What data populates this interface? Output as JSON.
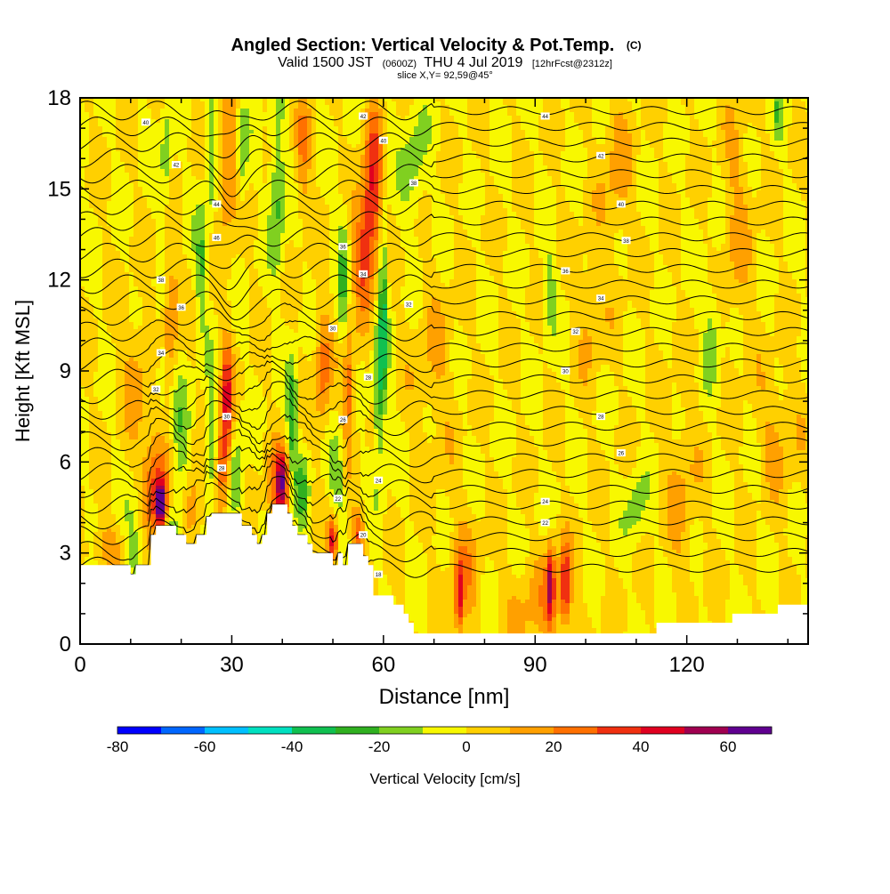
{
  "chart_data": {
    "type": "heatmap",
    "title": {
      "main": "Angled Section: Vertical Velocity & Pot.Temp.",
      "main_suffix": "(C)",
      "valid_a": "Valid 1500 JST",
      "valid_b": "(0600Z)",
      "valid_c": "THU 4 Jul 2019",
      "valid_d": "[12hrFcst@2312z]",
      "slice": "slice X,Y= 92,59@45°"
    },
    "xlabel": "Distance [nm]",
    "ylabel": "Height [Kft MSL]",
    "xlim": [
      0,
      144
    ],
    "ylim": [
      0,
      18
    ],
    "x_ticks": [
      0,
      30,
      60,
      90,
      120
    ],
    "y_ticks": [
      0,
      3,
      6,
      9,
      12,
      15,
      18
    ],
    "colorbar": {
      "label": "Vertical Velocity [cm/s]",
      "tick_values": [
        -80,
        -60,
        -40,
        -20,
        0,
        20,
        40,
        60
      ],
      "bounds": [
        -80,
        70
      ],
      "step": 10,
      "colors": [
        "#0000ff",
        "#0066ff",
        "#00c0ff",
        "#00e0c0",
        "#10c050",
        "#30b020",
        "#80d020",
        "#f8f800",
        "#ffd000",
        "#ffa000",
        "#ff7000",
        "#f03010",
        "#e00020",
        "#a00050",
        "#600090"
      ]
    },
    "background_value": 0,
    "features": [
      {
        "x": 16,
        "y": 4.6,
        "value": 65,
        "wx": 1.0,
        "wy": 0.7
      },
      {
        "x": 15,
        "y": 5.4,
        "value": 35,
        "wx": 2.5,
        "wy": 1.8
      },
      {
        "x": 5,
        "y": 3.2,
        "value": 15,
        "wx": 3.5,
        "wy": 0.8
      },
      {
        "x": 11,
        "y": 3.3,
        "value": -15,
        "wx": 2.0,
        "wy": 1.5
      },
      {
        "x": 18,
        "y": 3.7,
        "value": -15,
        "wx": 1.5,
        "wy": 1.0
      },
      {
        "x": 20,
        "y": 6.0,
        "value": -20,
        "wx": 2.0,
        "wy": 2.5
      },
      {
        "x": 22,
        "y": 4.5,
        "value": 25,
        "wx": 2.0,
        "wy": 1.5
      },
      {
        "x": 29,
        "y": 8.0,
        "value": 40,
        "wx": 1.2,
        "wy": 2.0
      },
      {
        "x": 28,
        "y": 5.8,
        "value": 30,
        "wx": 1.5,
        "wy": 1.5
      },
      {
        "x": 26,
        "y": 6.8,
        "value": -25,
        "wx": 1.2,
        "wy": 2.0
      },
      {
        "x": 31,
        "y": 5.5,
        "value": -20,
        "wx": 1.5,
        "wy": 1.5
      },
      {
        "x": 40,
        "y": 5.4,
        "value": 42,
        "wx": 1.2,
        "wy": 1.0
      },
      {
        "x": 39,
        "y": 4.8,
        "value": 25,
        "wx": 2.0,
        "wy": 1.5
      },
      {
        "x": 42,
        "y": 7.5,
        "value": -30,
        "wx": 1.0,
        "wy": 1.8
      },
      {
        "x": 44,
        "y": 5.0,
        "value": -20,
        "wx": 1.5,
        "wy": 1.3
      },
      {
        "x": 50,
        "y": 3.4,
        "value": 45,
        "wx": 1.0,
        "wy": 0.8
      },
      {
        "x": 51,
        "y": 5.5,
        "value": -18,
        "wx": 1.5,
        "wy": 1.5
      },
      {
        "x": 55,
        "y": 3.6,
        "value": 30,
        "wx": 1.2,
        "wy": 0.8
      },
      {
        "x": 53,
        "y": 8.5,
        "value": 30,
        "wx": 1.5,
        "wy": 2.0
      },
      {
        "x": 48,
        "y": 9.0,
        "value": 25,
        "wx": 1.5,
        "wy": 2.0
      },
      {
        "x": 58,
        "y": 15.0,
        "value": 40,
        "wx": 1.8,
        "wy": 2.5
      },
      {
        "x": 56,
        "y": 13.0,
        "value": 30,
        "wx": 1.8,
        "wy": 2.0
      },
      {
        "x": 60,
        "y": 11.0,
        "value": -30,
        "wx": 0.9,
        "wy": 3.5
      },
      {
        "x": 59,
        "y": 8.0,
        "value": -25,
        "wx": 1.0,
        "wy": 2.5
      },
      {
        "x": 52,
        "y": 11.5,
        "value": -20,
        "wx": 1.0,
        "wy": 3.0
      },
      {
        "x": 66,
        "y": 15.8,
        "value": -15,
        "wx": 2.5,
        "wy": 2.0
      },
      {
        "x": 39,
        "y": 15.0,
        "value": -25,
        "wx": 1.5,
        "wy": 2.5
      },
      {
        "x": 44,
        "y": 16.0,
        "value": 20,
        "wx": 1.5,
        "wy": 2.0
      },
      {
        "x": 29,
        "y": 15.5,
        "value": 25,
        "wx": 2.5,
        "wy": 2.0
      },
      {
        "x": 26,
        "y": 16.0,
        "value": -25,
        "wx": 1.2,
        "wy": 2.0
      },
      {
        "x": 32,
        "y": 16.0,
        "value": -20,
        "wx": 1.2,
        "wy": 2.0
      },
      {
        "x": 17,
        "y": 16.0,
        "value": -20,
        "wx": 1.0,
        "wy": 1.5
      },
      {
        "x": 24,
        "y": 12.5,
        "value": -20,
        "wx": 1.2,
        "wy": 2.0
      },
      {
        "x": 18,
        "y": 11.0,
        "value": 22,
        "wx": 1.5,
        "wy": 2.0
      },
      {
        "x": 16,
        "y": 9.0,
        "value": -15,
        "wx": 1.0,
        "wy": 1.5
      },
      {
        "x": 11,
        "y": 9.0,
        "value": 15,
        "wx": 2.5,
        "wy": 2.0
      },
      {
        "x": 75,
        "y": 1.5,
        "value": 35,
        "wx": 0.8,
        "wy": 1.2
      },
      {
        "x": 76,
        "y": 2.5,
        "value": 15,
        "wx": 3.0,
        "wy": 2.0
      },
      {
        "x": 93,
        "y": 2.0,
        "value": 40,
        "wx": 0.8,
        "wy": 1.3
      },
      {
        "x": 96,
        "y": 2.0,
        "value": 35,
        "wx": 0.8,
        "wy": 1.3
      },
      {
        "x": 94,
        "y": 1.5,
        "value": 18,
        "wx": 4.0,
        "wy": 1.5
      },
      {
        "x": 87,
        "y": 1.0,
        "value": 12,
        "wx": 3.0,
        "wy": 1.5
      },
      {
        "x": 93,
        "y": 11.5,
        "value": -15,
        "wx": 1.2,
        "wy": 1.5
      },
      {
        "x": 101,
        "y": 11.0,
        "value": 12,
        "wx": 2.5,
        "wy": 2.0
      },
      {
        "x": 110,
        "y": 4.5,
        "value": -15,
        "wx": 2.0,
        "wy": 1.2
      },
      {
        "x": 125,
        "y": 10.5,
        "value": -15,
        "wx": 1.8,
        "wy": 1.8
      },
      {
        "x": 119,
        "y": 5.0,
        "value": 12,
        "wx": 3.0,
        "wy": 3.0
      },
      {
        "x": 106,
        "y": 15.5,
        "value": 13,
        "wx": 3.0,
        "wy": 3.0
      },
      {
        "x": 130,
        "y": 14.0,
        "value": 12,
        "wx": 3.0,
        "wy": 4.0
      },
      {
        "x": 138,
        "y": 17.5,
        "value": -15,
        "wx": 1.0,
        "wy": 1.0
      },
      {
        "x": 138,
        "y": 7.0,
        "value": 12,
        "wx": 4.0,
        "wy": 2.0
      },
      {
        "x": 70,
        "y": 9.0,
        "value": 10,
        "wx": 4.0,
        "wy": 3.0
      }
    ],
    "terrain": [
      [
        0,
        2.6
      ],
      [
        10,
        2.6
      ],
      [
        10,
        2.3
      ],
      [
        11,
        2.3
      ],
      [
        11,
        2.6
      ],
      [
        14,
        2.6
      ],
      [
        14,
        3.6
      ],
      [
        15,
        3.6
      ],
      [
        15,
        3.9
      ],
      [
        19,
        3.9
      ],
      [
        19,
        3.6
      ],
      [
        21,
        3.6
      ],
      [
        21,
        3.3
      ],
      [
        23,
        3.3
      ],
      [
        23,
        3.6
      ],
      [
        25,
        3.6
      ],
      [
        25,
        4.2
      ],
      [
        26,
        4.2
      ],
      [
        26,
        4.3
      ],
      [
        32,
        4.3
      ],
      [
        32,
        3.9
      ],
      [
        34,
        3.9
      ],
      [
        34,
        3.6
      ],
      [
        35,
        3.6
      ],
      [
        35,
        3.3
      ],
      [
        36,
        3.3
      ],
      [
        36,
        3.6
      ],
      [
        37,
        3.6
      ],
      [
        37,
        4.3
      ],
      [
        38,
        4.3
      ],
      [
        38,
        4.6
      ],
      [
        41,
        4.6
      ],
      [
        41,
        4.3
      ],
      [
        42,
        4.3
      ],
      [
        42,
        3.9
      ],
      [
        43,
        3.9
      ],
      [
        43,
        3.6
      ],
      [
        45,
        3.6
      ],
      [
        45,
        3.3
      ],
      [
        46,
        3.3
      ],
      [
        46,
        3.0
      ],
      [
        50,
        3.0
      ],
      [
        50,
        2.6
      ],
      [
        51,
        2.6
      ],
      [
        51,
        3.0
      ],
      [
        52,
        3.0
      ],
      [
        52,
        2.6
      ],
      [
        53,
        2.6
      ],
      [
        53,
        3.3
      ],
      [
        56,
        3.3
      ],
      [
        56,
        2.9
      ],
      [
        57,
        2.9
      ],
      [
        57,
        2.6
      ],
      [
        58,
        2.6
      ],
      [
        58,
        1.6
      ],
      [
        62,
        1.6
      ],
      [
        62,
        1.3
      ],
      [
        64,
        1.3
      ],
      [
        64,
        1.0
      ],
      [
        65,
        1.0
      ],
      [
        65,
        0.7
      ],
      [
        66,
        0.7
      ],
      [
        66,
        0.35
      ],
      [
        114,
        0.35
      ],
      [
        114,
        0.7
      ],
      [
        129,
        0.7
      ],
      [
        129,
        1.0
      ],
      [
        138,
        1.0
      ],
      [
        138,
        1.3
      ],
      [
        144,
        1.3
      ]
    ],
    "isentropes": {
      "count": 30,
      "base_start": 2.5,
      "spacing": 0.52,
      "contour_labels": [
        {
          "x": 13,
          "y": 17.2,
          "text": "40"
        },
        {
          "x": 19,
          "y": 15.8,
          "text": "42"
        },
        {
          "x": 27,
          "y": 14.5,
          "text": "44"
        },
        {
          "x": 27,
          "y": 13.4,
          "text": "46"
        },
        {
          "x": 16,
          "y": 12.0,
          "text": "38"
        },
        {
          "x": 20,
          "y": 11.1,
          "text": "36"
        },
        {
          "x": 16,
          "y": 9.6,
          "text": "34"
        },
        {
          "x": 15,
          "y": 8.4,
          "text": "32"
        },
        {
          "x": 29,
          "y": 7.5,
          "text": "30"
        },
        {
          "x": 28,
          "y": 5.8,
          "text": "28"
        },
        {
          "x": 56,
          "y": 17.4,
          "text": "42"
        },
        {
          "x": 60,
          "y": 16.6,
          "text": "40"
        },
        {
          "x": 66,
          "y": 15.2,
          "text": "38"
        },
        {
          "x": 52,
          "y": 13.1,
          "text": "36"
        },
        {
          "x": 56,
          "y": 12.2,
          "text": "34"
        },
        {
          "x": 65,
          "y": 11.2,
          "text": "32"
        },
        {
          "x": 50,
          "y": 10.4,
          "text": "30"
        },
        {
          "x": 57,
          "y": 8.8,
          "text": "28"
        },
        {
          "x": 52,
          "y": 7.4,
          "text": "26"
        },
        {
          "x": 59,
          "y": 5.4,
          "text": "24"
        },
        {
          "x": 51,
          "y": 4.8,
          "text": "22"
        },
        {
          "x": 56,
          "y": 3.6,
          "text": "20"
        },
        {
          "x": 59,
          "y": 2.3,
          "text": "18"
        },
        {
          "x": 92,
          "y": 17.4,
          "text": "44"
        },
        {
          "x": 103,
          "y": 16.1,
          "text": "42"
        },
        {
          "x": 107,
          "y": 14.5,
          "text": "40"
        },
        {
          "x": 108,
          "y": 13.3,
          "text": "38"
        },
        {
          "x": 96,
          "y": 12.3,
          "text": "36"
        },
        {
          "x": 103,
          "y": 11.4,
          "text": "34"
        },
        {
          "x": 98,
          "y": 10.3,
          "text": "32"
        },
        {
          "x": 96,
          "y": 9.0,
          "text": "30"
        },
        {
          "x": 103,
          "y": 7.5,
          "text": "28"
        },
        {
          "x": 107,
          "y": 6.3,
          "text": "26"
        },
        {
          "x": 92,
          "y": 4.7,
          "text": "24"
        },
        {
          "x": 92,
          "y": 4.0,
          "text": "22"
        }
      ]
    },
    "colors": {
      "terrain_fill": "#ffffff",
      "contour_line": "#000000",
      "frame": "#000000"
    }
  }
}
